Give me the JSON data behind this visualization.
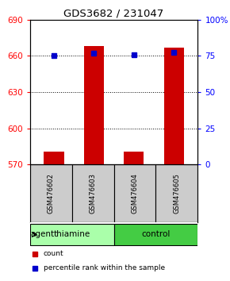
{
  "title": "GDS3682 / 231047",
  "categories": [
    "GSM476602",
    "GSM476603",
    "GSM476604",
    "GSM476605"
  ],
  "bar_values": [
    581,
    668,
    581,
    667
  ],
  "percentile_values": [
    660,
    662,
    661,
    663
  ],
  "bar_color": "#cc0000",
  "percentile_color": "#0000cc",
  "ylim_left": [
    570,
    690
  ],
  "ylim_right": [
    0,
    100
  ],
  "yticks_left": [
    570,
    600,
    630,
    660,
    690
  ],
  "yticks_right": [
    0,
    25,
    50,
    75,
    100
  ],
  "ytick_labels_right": [
    "0",
    "25",
    "50",
    "75",
    "100%"
  ],
  "groups": [
    {
      "label": "thiamine",
      "indices": [
        0,
        1
      ],
      "color": "#aaffaa"
    },
    {
      "label": "control",
      "indices": [
        2,
        3
      ],
      "color": "#44cc44"
    }
  ],
  "agent_label": "agent",
  "legend_items": [
    {
      "label": "count",
      "color": "#cc0000"
    },
    {
      "label": "percentile rank within the sample",
      "color": "#0000cc"
    }
  ],
  "bar_width": 0.5,
  "background_color": "#ffffff",
  "plot_bg_color": "#ffffff",
  "sample_box_color": "#cccccc"
}
